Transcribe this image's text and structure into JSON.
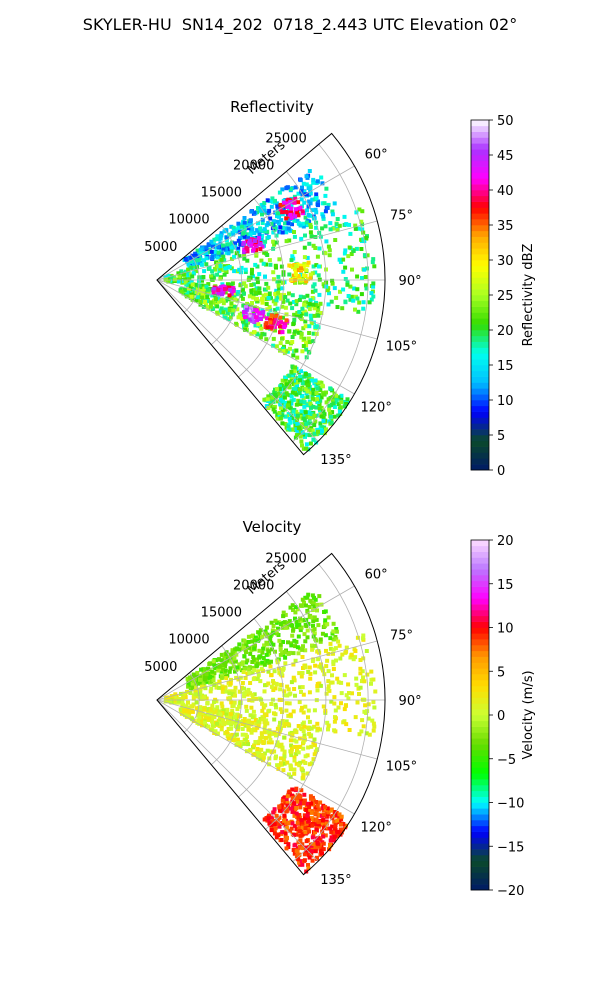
{
  "figure_title": "SKYLER-HU  SN14_202  0718_2.443 UTC Elevation 02°",
  "chart_data": [
    {
      "type": "heatmap",
      "subtype": "polar-sector-ppi",
      "title": "Reflectivity",
      "radial_label": "Meters",
      "radial_ticks": [
        "5000",
        "10000",
        "15000",
        "20000",
        "25000"
      ],
      "radial_range": [
        0,
        27000
      ],
      "angle_ticks": [
        "60°",
        "75°",
        "90°",
        "105°",
        "120°",
        "135°"
      ],
      "angle_range_deg": [
        50,
        140
      ],
      "colorbar": {
        "label": "Reflectivity dBZ",
        "range": [
          0,
          50
        ],
        "ticks": [
          "0",
          "5",
          "10",
          "15",
          "20",
          "25",
          "30",
          "35",
          "40",
          "45",
          "50"
        ],
        "stops": [
          "#001a66",
          "#0a4a2a",
          "#0000ff",
          "#00bfff",
          "#00ffee",
          "#33dd00",
          "#aaff22",
          "#ffff00",
          "#ffaa00",
          "#ff0000",
          "#ff00ff",
          "#aa33ff",
          "#ffffff"
        ]
      },
      "echo_regions": [
        {
          "az": [
            54,
            70
          ],
          "r": [
            4000,
            23000
          ],
          "dbz": 14
        },
        {
          "az": [
            70,
            100
          ],
          "r": [
            1000,
            26000
          ],
          "dbz": 20
        },
        {
          "az": [
            96,
            120
          ],
          "r": [
            3000,
            20000
          ],
          "dbz": 22
        },
        {
          "az": [
            122,
            139
          ],
          "r": [
            19000,
            27000
          ],
          "dbz": 20
        }
      ],
      "cores": [
        {
          "az": 62,
          "r": 18000,
          "dbz": 40
        },
        {
          "az": 70,
          "r": 12000,
          "dbz": 42
        },
        {
          "az": 87,
          "r": 17000,
          "dbz": 30
        },
        {
          "az": 99,
          "r": 8000,
          "dbz": 42
        },
        {
          "az": 110,
          "r": 12000,
          "dbz": 45
        },
        {
          "az": 110,
          "r": 15000,
          "dbz": 38
        }
      ]
    },
    {
      "type": "heatmap",
      "subtype": "polar-sector-ppi",
      "title": "Velocity",
      "radial_label": "Meters",
      "radial_ticks": [
        "5000",
        "10000",
        "15000",
        "20000",
        "25000"
      ],
      "radial_range": [
        0,
        27000
      ],
      "angle_ticks": [
        "60°",
        "75°",
        "90°",
        "105°",
        "120°",
        "135°"
      ],
      "angle_range_deg": [
        50,
        140
      ],
      "colorbar": {
        "label": "Velocity (m/s)",
        "range": [
          -20,
          20
        ],
        "ticks": [
          "−20",
          "−15",
          "−10",
          "−5",
          "0",
          "5",
          "10",
          "15",
          "20"
        ],
        "stops": [
          "#001a66",
          "#0a4a2a",
          "#0000ff",
          "#00ffff",
          "#00ff00",
          "#66dd00",
          "#ccff33",
          "#ffdd00",
          "#ff9900",
          "#ff0000",
          "#ff00ff",
          "#bb77ff",
          "#ffddff"
        ]
      },
      "echo_regions": [
        {
          "az": [
            55,
            72
          ],
          "r": [
            4000,
            23000
          ],
          "vel": -3
        },
        {
          "az": [
            72,
            100
          ],
          "r": [
            1000,
            26000
          ],
          "vel": 1
        },
        {
          "az": [
            100,
            120
          ],
          "r": [
            3000,
            20000
          ],
          "vel": 1
        },
        {
          "az": [
            122,
            139
          ],
          "r": [
            19000,
            27000
          ],
          "vel": 9
        }
      ]
    }
  ]
}
